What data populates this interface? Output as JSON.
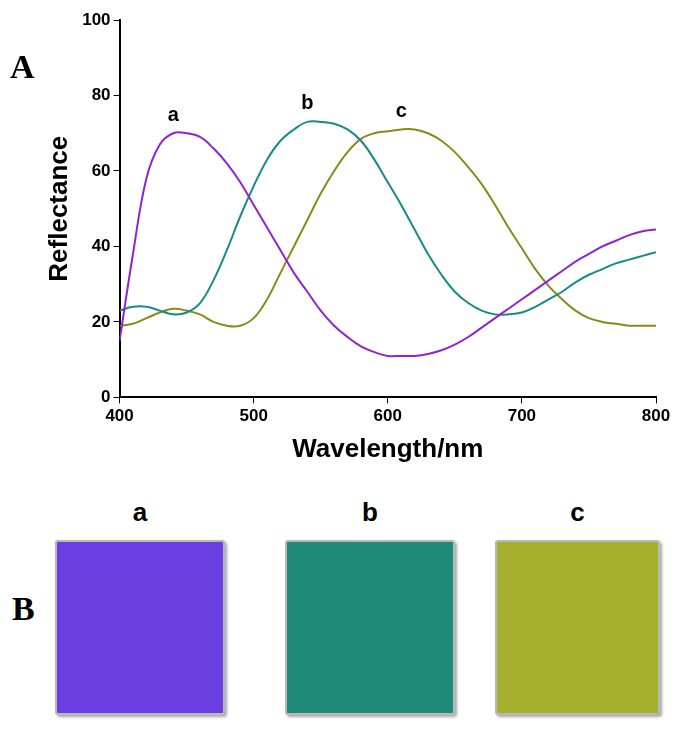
{
  "chart_data": {
    "type": "line",
    "x_label": "Wavelength/nm",
    "y_label": "Reflectance",
    "x": [
      400,
      410,
      420,
      430,
      440,
      450,
      460,
      470,
      480,
      490,
      500,
      510,
      520,
      530,
      540,
      550,
      560,
      570,
      580,
      590,
      600,
      610,
      620,
      630,
      640,
      650,
      660,
      670,
      680,
      690,
      700,
      710,
      720,
      730,
      740,
      750,
      760,
      770,
      780,
      790,
      800
    ],
    "xlim": [
      400,
      800
    ],
    "xticks": [
      400,
      500,
      600,
      700,
      800
    ],
    "ylim": [
      0,
      100
    ],
    "yticks": [
      0,
      20,
      40,
      60,
      80,
      100
    ],
    "grid": false,
    "series": [
      {
        "name": "a",
        "color": "#8e24d4",
        "values": [
          15,
          38,
          58,
          67,
          70,
          70,
          69,
          66,
          62,
          57,
          51,
          45,
          39,
          33,
          28,
          23,
          19,
          16,
          13.5,
          12,
          11,
          11,
          11,
          11.5,
          12.5,
          14,
          16,
          18.5,
          21,
          23.5,
          26,
          28.5,
          31,
          33.5,
          36,
          38,
          40,
          41.5,
          43,
          44,
          44.5
        ]
      },
      {
        "name": "b",
        "color": "#178a8a",
        "values": [
          23,
          24,
          24,
          23,
          22,
          22.5,
          25,
          31,
          39,
          48,
          56,
          63,
          68,
          71,
          73,
          73,
          72.5,
          71,
          68,
          63,
          57,
          51,
          44.5,
          38,
          32.5,
          28,
          25,
          23,
          22,
          22,
          22.5,
          24,
          26,
          28,
          30.5,
          32.5,
          34,
          35.5,
          36.5,
          37.5,
          38.5
        ]
      },
      {
        "name": "c",
        "color": "#8a8a1a",
        "values": [
          19,
          19.5,
          21,
          22.5,
          23.5,
          23,
          22,
          20,
          19,
          19,
          21,
          26,
          33,
          40,
          47,
          54,
          60,
          65,
          68.5,
          70,
          70.5,
          71,
          71,
          70,
          68,
          65,
          61,
          56.5,
          51,
          45,
          39.5,
          34,
          29.5,
          26,
          23,
          21,
          20,
          19.5,
          19,
          19,
          19
        ]
      }
    ]
  },
  "panels": [
    {
      "label": "A"
    },
    {
      "label": "B",
      "samples": [
        {
          "label": "a",
          "color": "#6a3ee0"
        },
        {
          "label": "b",
          "color": "#1f8a78"
        },
        {
          "label": "c",
          "color": "#a6b02e"
        }
      ]
    }
  ]
}
